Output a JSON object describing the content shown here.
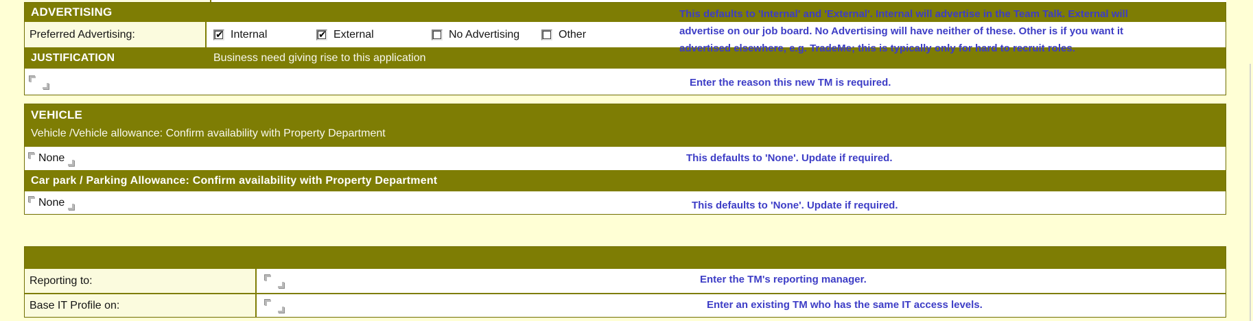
{
  "colors": {
    "olive": "#7e7d04",
    "label_bg": "#fbfbde",
    "page_bg": "#ffffd5",
    "annotation_blue": "#3d3dc6"
  },
  "advertising_table": {
    "header": "ADVERTISING",
    "preferred_label": "Preferred Advertising:",
    "checkboxes": [
      {
        "label": "Internal",
        "checked": true
      },
      {
        "label": "External",
        "checked": true
      },
      {
        "label": "No Advertising",
        "checked": false
      },
      {
        "label": "Other",
        "checked": false
      }
    ],
    "justification_header": "JUSTIFICATION",
    "justification_desc": "Business need giving rise to this application",
    "justification_value": ""
  },
  "vehicle_table": {
    "header": "VEHICLE",
    "vehicle_label": "Vehicle /Vehicle allowance:  Confirm availability with Property Department",
    "vehicle_value": "None",
    "carpark_label": "Car park / Parking Allowance:  Confirm availability with Property Department",
    "carpark_value": "None"
  },
  "reporting_table": {
    "header": "",
    "reporting_label": "Reporting to:",
    "reporting_value": "",
    "base_it_label": "Base IT Profile on:",
    "base_it_value": ""
  },
  "annotations": {
    "advertising_lines": [
      "This defaults to 'Internal' and 'External'. Internal will advertise in the Team Talk. External will",
      "advertise on our job board. No Advertising will have neither of these. Other is if you want it",
      "advertised elsewhere, e.g. TradeMe; this is typically only for hard to recruit roles."
    ],
    "justification": "Enter the reason this new TM is required.",
    "vehicle": "This defaults to 'None'. Update if required.",
    "carpark": "This defaults to 'None'. Update if required.",
    "reporting": "Enter the TM's reporting manager.",
    "base_it": "Enter an existing TM who has the same IT access levels."
  }
}
